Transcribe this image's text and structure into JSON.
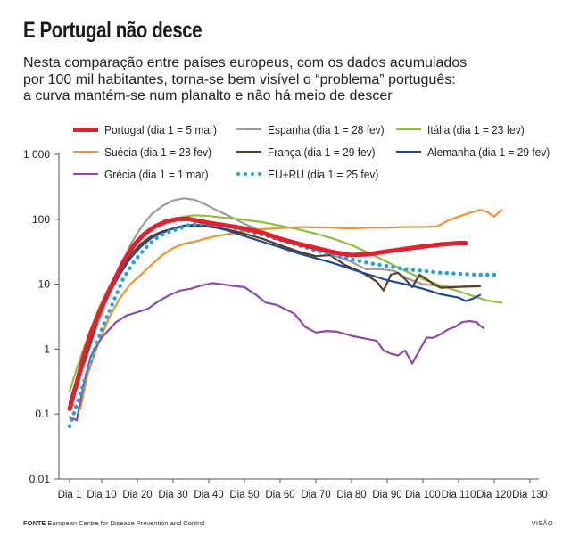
{
  "title": "E Portugal não desce",
  "subtitle_lines": [
    "Nesta comparação entre países europeus, com os dados acumulados",
    "por 100 mil habitantes, torna-se bem visível o “problema” português:",
    "a curva mantém-se num planalto e não há meio de descer"
  ],
  "footer": {
    "label": "FONTE",
    "text": "European Centre for Disease Prevention and Control"
  },
  "brand": "VISÃO",
  "chart_data": {
    "type": "line",
    "y_scale": "log",
    "ylim": [
      0.01,
      1000
    ],
    "xlim": [
      1,
      130
    ],
    "y_ticks": [
      {
        "value": 1000,
        "label": "1 000"
      },
      {
        "value": 100,
        "label": "100"
      },
      {
        "value": 10,
        "label": "10"
      },
      {
        "value": 1,
        "label": "1"
      },
      {
        "value": 0.1,
        "label": "0.1"
      },
      {
        "value": 0.01,
        "label": "0.01"
      }
    ],
    "x_ticks": [
      {
        "value": 1,
        "label": "Dia 1"
      },
      {
        "value": 10,
        "label": "Dia 10"
      },
      {
        "value": 20,
        "label": "Dia 20"
      },
      {
        "value": 30,
        "label": "Dia 30"
      },
      {
        "value": 40,
        "label": "Dia 40"
      },
      {
        "value": 50,
        "label": "Dia 50"
      },
      {
        "value": 60,
        "label": "Dia 60"
      },
      {
        "value": 70,
        "label": "Dia 70"
      },
      {
        "value": 80,
        "label": "Dia 80"
      },
      {
        "value": 90,
        "label": "Dia 90"
      },
      {
        "value": 100,
        "label": "Dia 100"
      },
      {
        "value": 110,
        "label": "Dia 110"
      },
      {
        "value": 120,
        "label": "Dia 120"
      },
      {
        "value": 130,
        "label": "Dia 130"
      }
    ],
    "series": [
      {
        "name": "Portugal (dia 1 = 5 mar)",
        "color": "#e5202e",
        "style": "thick",
        "points": [
          [
            1,
            0.12
          ],
          [
            3,
            0.3
          ],
          [
            5,
            0.8
          ],
          [
            7,
            1.8
          ],
          [
            10,
            4.5
          ],
          [
            13,
            10
          ],
          [
            16,
            22
          ],
          [
            19,
            40
          ],
          [
            22,
            60
          ],
          [
            25,
            78
          ],
          [
            28,
            92
          ],
          [
            31,
            100
          ],
          [
            34,
            102
          ],
          [
            37,
            95
          ],
          [
            40,
            88
          ],
          [
            45,
            80
          ],
          [
            50,
            72
          ],
          [
            55,
            62
          ],
          [
            60,
            50
          ],
          [
            65,
            42
          ],
          [
            70,
            36
          ],
          [
            75,
            31
          ],
          [
            80,
            28
          ],
          [
            85,
            29
          ],
          [
            90,
            32
          ],
          [
            95,
            35
          ],
          [
            100,
            38
          ],
          [
            105,
            41
          ],
          [
            110,
            43
          ],
          [
            112,
            43
          ]
        ]
      },
      {
        "name": "Espanha (dia 1 = 28 fev)",
        "color": "#9b9b9b",
        "style": "solid",
        "points": [
          [
            1,
            0.12
          ],
          [
            3,
            0.25
          ],
          [
            6,
            0.8
          ],
          [
            9,
            2.5
          ],
          [
            12,
            7
          ],
          [
            15,
            18
          ],
          [
            18,
            40
          ],
          [
            21,
            75
          ],
          [
            24,
            120
          ],
          [
            27,
            160
          ],
          [
            30,
            195
          ],
          [
            33,
            210
          ],
          [
            36,
            200
          ],
          [
            39,
            170
          ],
          [
            42,
            140
          ],
          [
            46,
            110
          ],
          [
            50,
            85
          ],
          [
            55,
            65
          ],
          [
            60,
            52
          ],
          [
            65,
            42
          ],
          [
            70,
            34
          ],
          [
            75,
            28
          ],
          [
            80,
            22
          ],
          [
            84,
            17
          ],
          [
            88,
            17
          ],
          [
            92,
            16
          ],
          [
            96,
            12
          ],
          [
            100,
            10
          ],
          [
            104,
            9.5
          ],
          [
            108,
            9
          ],
          [
            112,
            9.2
          ]
        ]
      },
      {
        "name": "Itália (dia 1 = 23 fev)",
        "color": "#8ebf3d",
        "style": "solid",
        "points": [
          [
            1,
            0.22
          ],
          [
            3,
            0.5
          ],
          [
            6,
            1.5
          ],
          [
            9,
            4
          ],
          [
            12,
            9
          ],
          [
            15,
            18
          ],
          [
            18,
            32
          ],
          [
            21,
            50
          ],
          [
            24,
            70
          ],
          [
            27,
            88
          ],
          [
            30,
            100
          ],
          [
            33,
            110
          ],
          [
            36,
            115
          ],
          [
            40,
            112
          ],
          [
            45,
            105
          ],
          [
            50,
            98
          ],
          [
            55,
            90
          ],
          [
            60,
            80
          ],
          [
            65,
            70
          ],
          [
            70,
            60
          ],
          [
            75,
            50
          ],
          [
            80,
            40
          ],
          [
            85,
            30
          ],
          [
            90,
            22
          ],
          [
            95,
            16
          ],
          [
            100,
            12
          ],
          [
            105,
            9.5
          ],
          [
            110,
            7.8
          ],
          [
            115,
            6.3
          ],
          [
            118,
            5.6
          ],
          [
            122,
            5.2
          ]
        ]
      },
      {
        "name": "Suécia (dia 1 = 28 fev)",
        "color": "#f0922e",
        "style": "solid",
        "points": [
          [
            1,
            0.15
          ],
          [
            4,
            0.12
          ],
          [
            6,
            0.4
          ],
          [
            9,
            1.2
          ],
          [
            12,
            3
          ],
          [
            15,
            6
          ],
          [
            18,
            10
          ],
          [
            21,
            14
          ],
          [
            24,
            20
          ],
          [
            27,
            28
          ],
          [
            30,
            36
          ],
          [
            33,
            42
          ],
          [
            36,
            45
          ],
          [
            39,
            50
          ],
          [
            42,
            55
          ],
          [
            46,
            60
          ],
          [
            50,
            65
          ],
          [
            54,
            70
          ],
          [
            58,
            72
          ],
          [
            62,
            74
          ],
          [
            66,
            76
          ],
          [
            70,
            75
          ],
          [
            75,
            74
          ],
          [
            80,
            72
          ],
          [
            85,
            74
          ],
          [
            90,
            74
          ],
          [
            95,
            76
          ],
          [
            100,
            76
          ],
          [
            104,
            78
          ],
          [
            107,
            95
          ],
          [
            110,
            110
          ],
          [
            113,
            125
          ],
          [
            116,
            140
          ],
          [
            118,
            130
          ],
          [
            120,
            110
          ],
          [
            122,
            140
          ]
        ]
      },
      {
        "name": "França (dia 1 = 29 fev)",
        "color": "#5b3d22",
        "style": "solid",
        "points": [
          [
            1,
            0.12
          ],
          [
            3,
            0.3
          ],
          [
            6,
            0.9
          ],
          [
            9,
            3
          ],
          [
            12,
            8
          ],
          [
            15,
            16
          ],
          [
            18,
            28
          ],
          [
            21,
            42
          ],
          [
            24,
            55
          ],
          [
            27,
            65
          ],
          [
            30,
            72
          ],
          [
            33,
            78
          ],
          [
            36,
            80
          ],
          [
            39,
            78
          ],
          [
            42,
            74
          ],
          [
            45,
            70
          ],
          [
            50,
            60
          ],
          [
            55,
            50
          ],
          [
            60,
            40
          ],
          [
            65,
            32
          ],
          [
            70,
            27
          ],
          [
            74,
            28
          ],
          [
            78,
            20
          ],
          [
            82,
            16
          ],
          [
            85,
            13
          ],
          [
            87,
            11
          ],
          [
            89,
            8
          ],
          [
            91,
            14
          ],
          [
            93,
            15
          ],
          [
            95,
            12
          ],
          [
            97,
            9
          ],
          [
            99,
            14
          ],
          [
            101,
            12
          ],
          [
            103,
            10
          ],
          [
            105,
            8.8
          ],
          [
            110,
            9.1
          ],
          [
            116,
            9.3
          ]
        ]
      },
      {
        "name": "Alemanha (dia 1 = 29 fev)",
        "color": "#1e4a8c",
        "style": "solid",
        "points": [
          [
            1,
            0.15
          ],
          [
            3,
            0.35
          ],
          [
            6,
            1
          ],
          [
            9,
            3
          ],
          [
            12,
            7
          ],
          [
            15,
            14
          ],
          [
            18,
            25
          ],
          [
            21,
            38
          ],
          [
            24,
            52
          ],
          [
            27,
            62
          ],
          [
            30,
            72
          ],
          [
            33,
            80
          ],
          [
            36,
            82
          ],
          [
            39,
            80
          ],
          [
            42,
            75
          ],
          [
            45,
            68
          ],
          [
            50,
            55
          ],
          [
            55,
            45
          ],
          [
            60,
            37
          ],
          [
            65,
            30
          ],
          [
            70,
            25
          ],
          [
            75,
            21
          ],
          [
            80,
            17
          ],
          [
            85,
            14
          ],
          [
            90,
            11.5
          ],
          [
            95,
            10
          ],
          [
            100,
            8.5
          ],
          [
            105,
            7
          ],
          [
            110,
            6.2
          ],
          [
            112,
            5.5
          ],
          [
            114,
            6
          ],
          [
            116,
            6.8
          ]
        ]
      },
      {
        "name": "Grécia (dia 1 = 1 mar)",
        "color": "#8d4aa6",
        "style": "solid",
        "points": [
          [
            1,
            0.09
          ],
          [
            3,
            0.08
          ],
          [
            5,
            0.3
          ],
          [
            7,
            0.8
          ],
          [
            10,
            1.5
          ],
          [
            14,
            2.6
          ],
          [
            17,
            3.3
          ],
          [
            20,
            3.7
          ],
          [
            23,
            4.2
          ],
          [
            26,
            5.5
          ],
          [
            29,
            6.8
          ],
          [
            32,
            8
          ],
          [
            35,
            8.5
          ],
          [
            38,
            9.6
          ],
          [
            41,
            10.4
          ],
          [
            44,
            9.9
          ],
          [
            47,
            9.4
          ],
          [
            50,
            9
          ],
          [
            53,
            7
          ],
          [
            56,
            5.2
          ],
          [
            59,
            4.8
          ],
          [
            62,
            4
          ],
          [
            64,
            3.5
          ],
          [
            67,
            2.2
          ],
          [
            70,
            1.8
          ],
          [
            73,
            1.9
          ],
          [
            76,
            1.85
          ],
          [
            80,
            1.6
          ],
          [
            84,
            1.45
          ],
          [
            87,
            1.35
          ],
          [
            89,
            0.95
          ],
          [
            91,
            0.85
          ],
          [
            93,
            0.8
          ],
          [
            95,
            0.95
          ],
          [
            97,
            0.6
          ],
          [
            99,
            0.95
          ],
          [
            101,
            1.5
          ],
          [
            103,
            1.5
          ],
          [
            105,
            1.7
          ],
          [
            107,
            2
          ],
          [
            109,
            2.2
          ],
          [
            111,
            2.6
          ],
          [
            113,
            2.7
          ],
          [
            115,
            2.6
          ],
          [
            116,
            2.3
          ],
          [
            117,
            2.1
          ]
        ]
      },
      {
        "name": "EU+RU (dia 1 = 25 fev)",
        "color": "#2aa0d8",
        "style": "dotted",
        "points": [
          [
            1,
            0.065
          ],
          [
            4,
            0.2
          ],
          [
            7,
            0.7
          ],
          [
            10,
            2
          ],
          [
            13,
            5
          ],
          [
            16,
            12
          ],
          [
            19,
            22
          ],
          [
            22,
            35
          ],
          [
            25,
            50
          ],
          [
            28,
            62
          ],
          [
            31,
            70
          ],
          [
            34,
            80
          ],
          [
            37,
            85
          ],
          [
            40,
            84
          ],
          [
            45,
            78
          ],
          [
            50,
            68
          ],
          [
            55,
            58
          ],
          [
            60,
            48
          ],
          [
            65,
            40
          ],
          [
            70,
            33
          ],
          [
            75,
            28
          ],
          [
            80,
            24
          ],
          [
            85,
            21
          ],
          [
            90,
            19
          ],
          [
            95,
            17
          ],
          [
            100,
            16
          ],
          [
            105,
            15
          ],
          [
            110,
            14.5
          ],
          [
            115,
            14
          ],
          [
            120,
            14
          ]
        ]
      }
    ]
  }
}
